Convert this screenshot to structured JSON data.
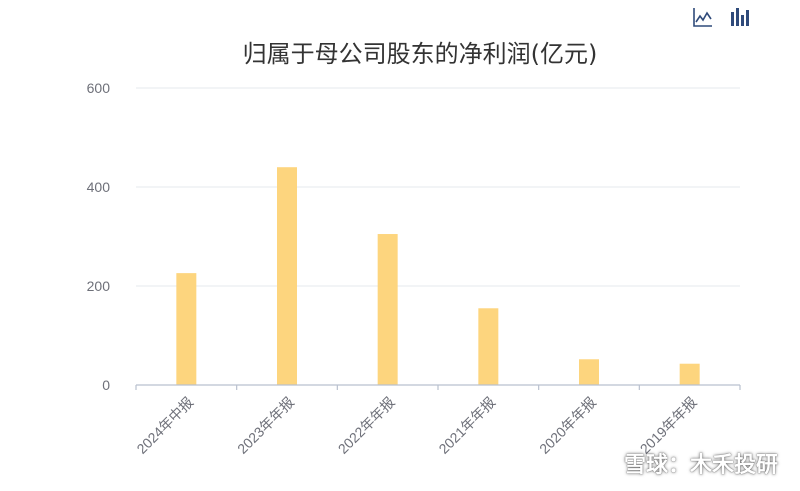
{
  "chart_data": {
    "type": "bar",
    "title": "归属于母公司股东的净利润(亿元)",
    "categories": [
      "2024年中报",
      "2023年年报",
      "2022年年报",
      "2021年年报",
      "2020年年报",
      "2019年年报"
    ],
    "values": [
      226,
      440,
      305,
      155,
      52,
      43
    ],
    "ylim": [
      0,
      600
    ],
    "yticks": [
      0,
      200,
      400,
      600
    ],
    "grid": true,
    "bar_color": "#fdd57e",
    "axis_color": "#b9c1cf",
    "grid_color": "#e4e8ee",
    "tick_color": "#6e7079"
  },
  "toolbar": {
    "line_icon": "line-chart-icon",
    "bar_icon": "bar-chart-icon",
    "color": "#2f4a7a"
  },
  "watermark": {
    "text": "雪球：木禾投研",
    "icon": "snowball-logo-icon"
  }
}
